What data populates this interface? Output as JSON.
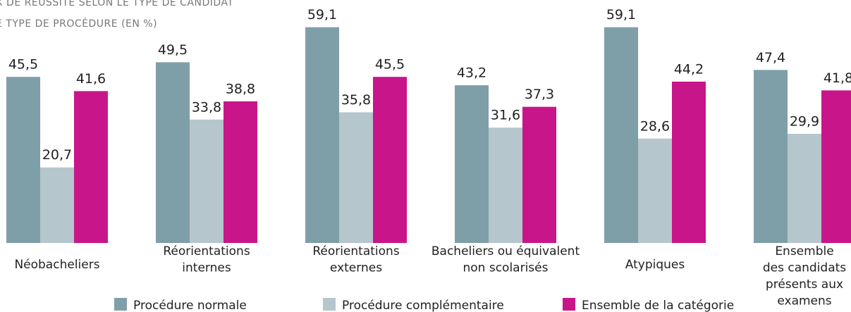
{
  "chart_data": {
    "type": "bar",
    "title": "x de réussite selon le type de candidat",
    "subtitle": "e type de procédure (en %)",
    "categories": [
      [
        "Néobacheliers"
      ],
      [
        "Réorientations",
        "internes"
      ],
      [
        "Réorientations",
        "externes"
      ],
      [
        "Bacheliers ou équivalent",
        "non scolarisés"
      ],
      [
        "Atypiques"
      ],
      [
        "Ensemble",
        "des candidats",
        "présents aux",
        "examens"
      ]
    ],
    "ylim": [
      0,
      60
    ],
    "series": [
      {
        "name": "Procédure normale",
        "color": "#7f9fa8",
        "values": [
          45.5,
          49.5,
          59.1,
          43.2,
          59.1,
          47.4
        ],
        "value_labels": [
          "45,5",
          "49,5",
          "59,1",
          "43,2",
          "59,1",
          "47,4"
        ]
      },
      {
        "name": "Procédure complémentaire",
        "color": "#b6c6cd",
        "values": [
          20.7,
          33.8,
          35.8,
          31.6,
          28.6,
          29.9
        ],
        "value_labels": [
          "20,7",
          "33,8",
          "35,8",
          "31,6",
          "28,6",
          "29,9"
        ]
      },
      {
        "name": "Ensemble de la catégorie",
        "color": "#c8168a",
        "values": [
          41.6,
          38.8,
          45.5,
          37.3,
          44.2,
          41.8
        ],
        "value_labels": [
          "41,6",
          "38,8",
          "45,5",
          "37,3",
          "44,2",
          "41,8"
        ]
      }
    ]
  }
}
